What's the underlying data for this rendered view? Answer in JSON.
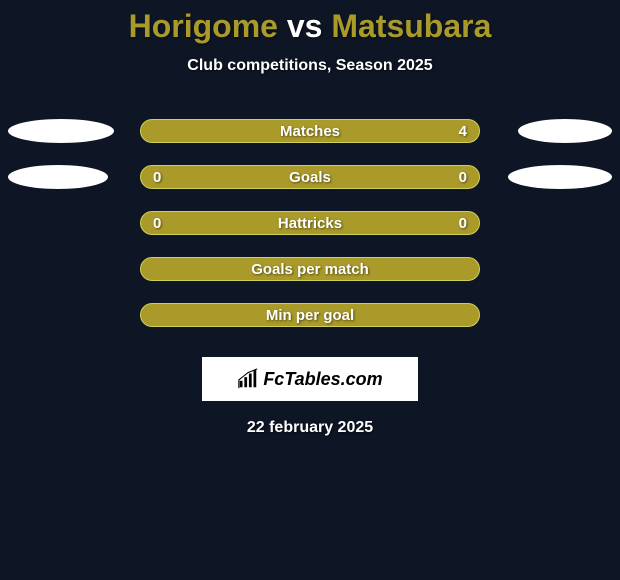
{
  "title": {
    "player1": "Horigome",
    "vs": "vs",
    "player2": "Matsubara",
    "player1_color": "#a99a2a",
    "vs_color": "#ffffff",
    "player2_color": "#a99a2a"
  },
  "subtitle": "Club competitions, Season 2025",
  "background_color": "#0e1626",
  "bar_style": {
    "fill": "#a99a2a",
    "border": "#cfd05a",
    "radius": 12,
    "height": 24,
    "font_size": 15
  },
  "ellipse_style": {
    "color": "#ffffff",
    "height": 24
  },
  "rows": [
    {
      "label": "Matches",
      "left": "",
      "right": "4",
      "ellipse_left_width": 106,
      "ellipse_right_width": 94
    },
    {
      "label": "Goals",
      "left": "0",
      "right": "0",
      "ellipse_left_width": 100,
      "ellipse_right_width": 104
    },
    {
      "label": "Hattricks",
      "left": "0",
      "right": "0",
      "ellipse_left_width": 0,
      "ellipse_right_width": 0
    },
    {
      "label": "Goals per match",
      "left": "",
      "right": "",
      "ellipse_left_width": 0,
      "ellipse_right_width": 0
    },
    {
      "label": "Min per goal",
      "left": "",
      "right": "",
      "ellipse_left_width": 0,
      "ellipse_right_width": 0
    }
  ],
  "logo": {
    "text": "FcTables.com",
    "icon_name": "bar-chart-icon"
  },
  "date": "22 february 2025"
}
